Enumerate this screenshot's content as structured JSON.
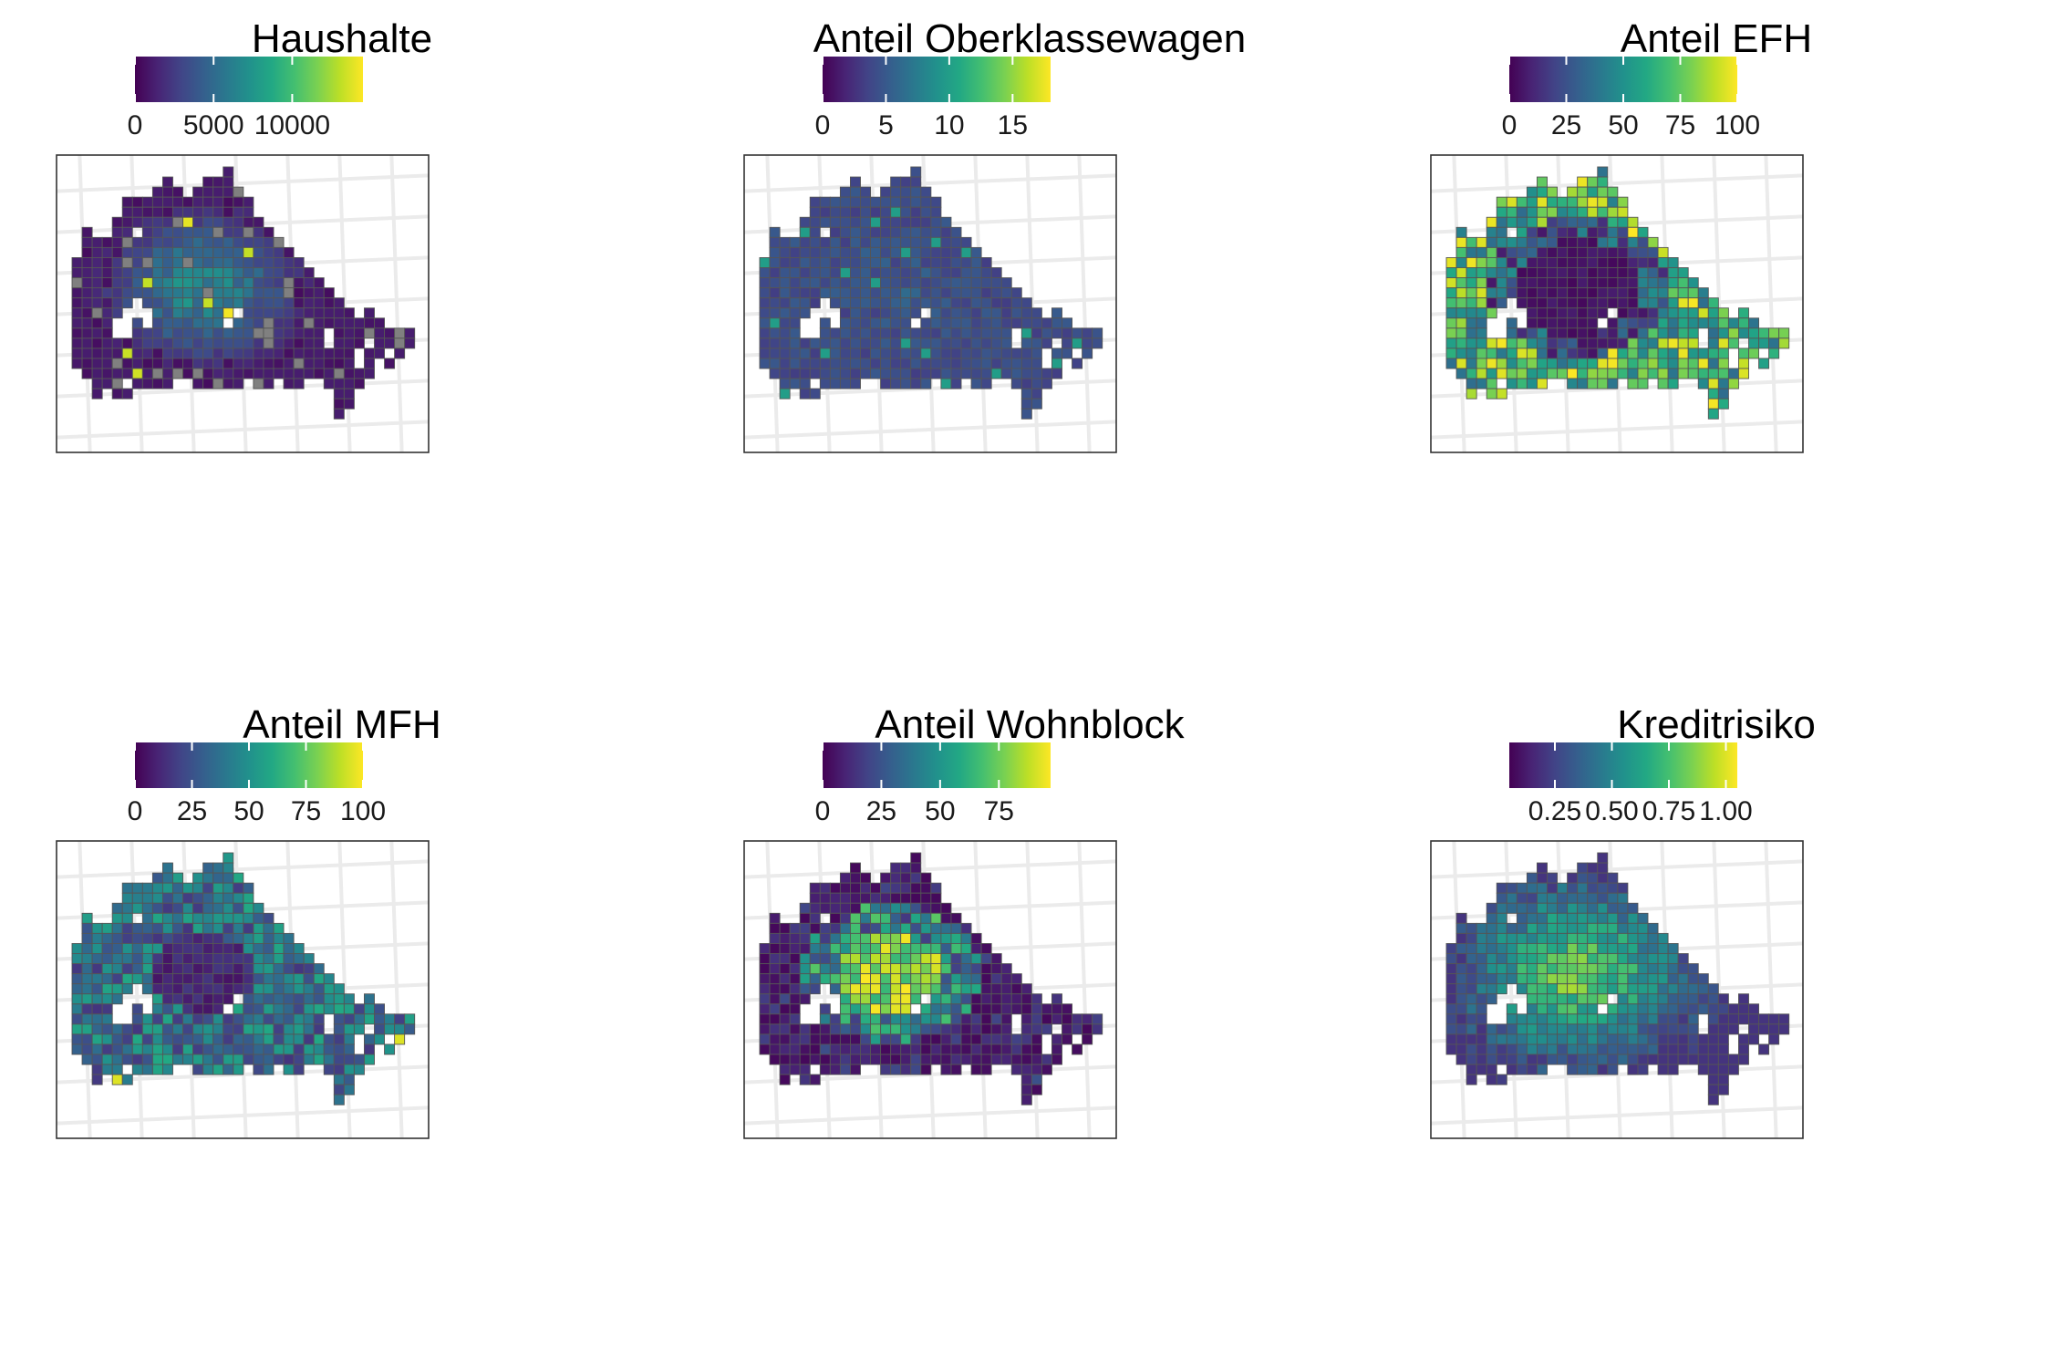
{
  "chart_data": [
    {
      "type": "heatmap",
      "title": "Haushalte",
      "colorscale": "viridis",
      "range": [
        0,
        14500
      ],
      "ticks": [
        0,
        5000,
        10000
      ],
      "tick_labels": [
        "0",
        "5000",
        "10000"
      ],
      "na_color": "#808080",
      "grid_lines": true,
      "description_values": "households per grid cell, mostly low with higher values in city centre"
    },
    {
      "type": "heatmap",
      "title": "Anteil Oberklassewagen",
      "colorscale": "viridis",
      "range": [
        0,
        18
      ],
      "ticks": [
        0,
        5,
        10,
        15
      ],
      "tick_labels": [
        "0",
        "5",
        "10",
        "15"
      ],
      "grid_lines": true
    },
    {
      "type": "heatmap",
      "title": "Anteil EFH",
      "colorscale": "viridis",
      "range": [
        0,
        100
      ],
      "ticks": [
        0,
        25,
        50,
        75,
        100
      ],
      "tick_labels": [
        "0",
        "25",
        "50",
        "75",
        "100"
      ],
      "grid_lines": true
    },
    {
      "type": "heatmap",
      "title": "Anteil MFH",
      "colorscale": "viridis",
      "range": [
        0,
        100
      ],
      "ticks": [
        0,
        25,
        50,
        75,
        100
      ],
      "tick_labels": [
        "0",
        "25",
        "50",
        "75",
        "100"
      ],
      "grid_lines": true
    },
    {
      "type": "heatmap",
      "title": "Anteil Wohnblock",
      "colorscale": "viridis",
      "range": [
        0,
        97
      ],
      "ticks": [
        0,
        25,
        50,
        75
      ],
      "tick_labels": [
        "0",
        "25",
        "50",
        "75"
      ],
      "grid_lines": true
    },
    {
      "type": "heatmap",
      "title": "Kreditrisiko",
      "colorscale": "viridis",
      "range": [
        0.05,
        1.05
      ],
      "ticks": [
        0.25,
        0.5,
        0.75,
        1.0
      ],
      "tick_labels": [
        "0.25",
        "0.50",
        "0.75",
        "1.00"
      ],
      "grid_lines": true
    }
  ]
}
